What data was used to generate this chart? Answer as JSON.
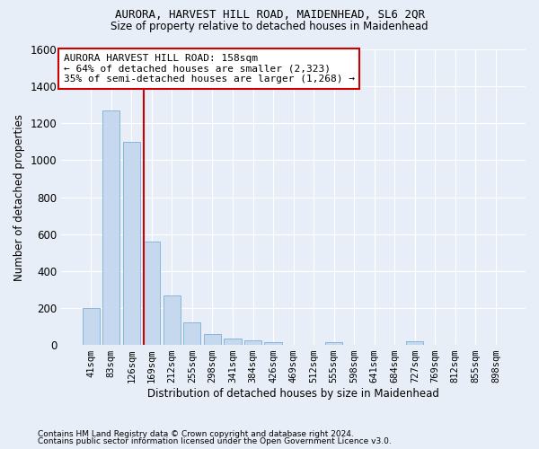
{
  "title1": "AURORA, HARVEST HILL ROAD, MAIDENHEAD, SL6 2QR",
  "title2": "Size of property relative to detached houses in Maidenhead",
  "xlabel": "Distribution of detached houses by size in Maidenhead",
  "ylabel": "Number of detached properties",
  "footnote1": "Contains HM Land Registry data © Crown copyright and database right 2024.",
  "footnote2": "Contains public sector information licensed under the Open Government Licence v3.0.",
  "bar_labels": [
    "41sqm",
    "83sqm",
    "126sqm",
    "169sqm",
    "212sqm",
    "255sqm",
    "298sqm",
    "341sqm",
    "384sqm",
    "426sqm",
    "469sqm",
    "512sqm",
    "555sqm",
    "598sqm",
    "641sqm",
    "684sqm",
    "727sqm",
    "769sqm",
    "812sqm",
    "855sqm",
    "898sqm"
  ],
  "bar_values": [
    200,
    1270,
    1100,
    560,
    270,
    120,
    60,
    35,
    25,
    15,
    0,
    0,
    15,
    0,
    0,
    0,
    20,
    0,
    0,
    0,
    0
  ],
  "bar_color": "#c5d8ee",
  "bar_edge_color": "#7aafd4",
  "background_color": "#e8eef7",
  "grid_color": "#ffffff",
  "annotation_text": "AURORA HARVEST HILL ROAD: 158sqm\n← 64% of detached houses are smaller (2,323)\n35% of semi-detached houses are larger (1,268) →",
  "annotation_box_color": "#ffffff",
  "annotation_box_edge_color": "#cc0000",
  "vline_x": 2.62,
  "vline_color": "#cc0000",
  "ylim": [
    0,
    1600
  ],
  "yticks": [
    0,
    200,
    400,
    600,
    800,
    1000,
    1200,
    1400,
    1600
  ]
}
